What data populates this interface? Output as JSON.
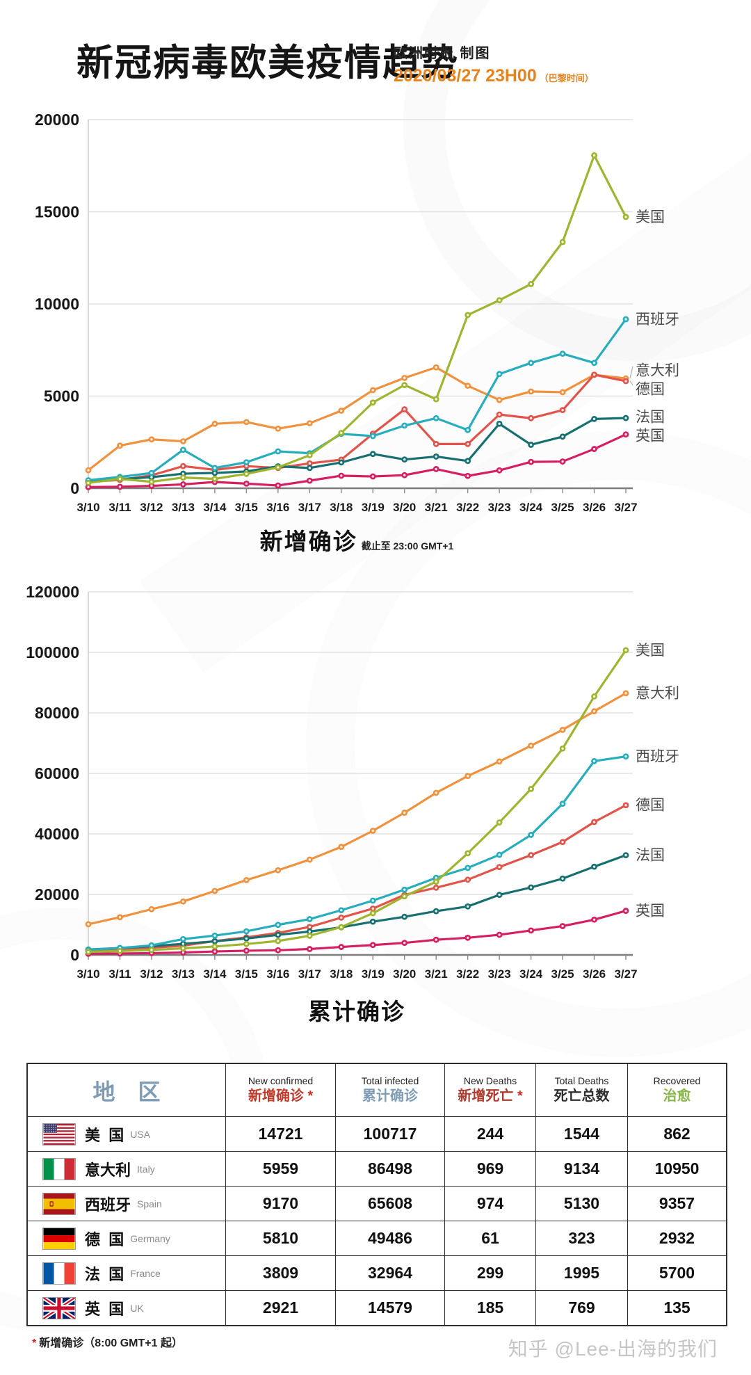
{
  "header": {
    "title": "新冠病毒欧美疫情趋势",
    "credit": "欧洲时报 制图",
    "datetime": "2020/03/27 23H00",
    "timezone_note": "（巴黎时间）",
    "accent_color": "#e8831c"
  },
  "chart_data": [
    {
      "type": "line",
      "title": "新增确诊",
      "title_suffix": "截止至 23:00 GMT+1",
      "x": [
        "3/10",
        "3/11",
        "3/12",
        "3/13",
        "3/14",
        "3/15",
        "3/16",
        "3/17",
        "3/18",
        "3/19",
        "3/20",
        "3/21",
        "3/22",
        "3/23",
        "3/24",
        "3/25",
        "3/26",
        "3/27"
      ],
      "ylim": [
        0,
        20000
      ],
      "yticks": [
        0,
        5000,
        10000,
        15000,
        20000
      ],
      "grid": true,
      "legend_position": "right",
      "series": [
        {
          "name": "意大利",
          "color": "#f0923d",
          "values": [
            977,
            2313,
            2651,
            2547,
            3497,
            3590,
            3233,
            3526,
            4207,
            5322,
            5986,
            6557,
            5560,
            4789,
            5249,
            5210,
            6153,
            5959
          ]
        },
        {
          "name": "德国",
          "color": "#e25449",
          "values": [
            350,
            450,
            700,
            1200,
            1000,
            1200,
            1100,
            1350,
            1550,
            2960,
            4280,
            2400,
            2400,
            4000,
            3800,
            4240,
            6160,
            5810
          ]
        },
        {
          "name": "法国",
          "color": "#17706f",
          "values": [
            370,
            500,
            600,
            790,
            830,
            910,
            1190,
            1100,
            1400,
            1860,
            1560,
            1720,
            1480,
            3500,
            2360,
            2800,
            3760,
            3809
          ]
        },
        {
          "name": "英国",
          "color": "#d61e62",
          "values": [
            60,
            80,
            130,
            210,
            340,
            250,
            150,
            410,
            680,
            640,
            710,
            1040,
            670,
            970,
            1430,
            1450,
            2130,
            2921
          ]
        },
        {
          "name": "西班牙",
          "color": "#27adbc",
          "values": [
            435,
            615,
            825,
            2086,
            1100,
            1410,
            2000,
            1900,
            2950,
            2830,
            3400,
            3800,
            3160,
            6200,
            6800,
            7300,
            6800,
            9170
          ]
        },
        {
          "name": "美国",
          "color": "#a0b52f",
          "values": [
            290,
            510,
            350,
            580,
            510,
            780,
            1130,
            1790,
            3000,
            4650,
            5600,
            4830,
            9400,
            10200,
            11080,
            13360,
            18060,
            14721
          ]
        }
      ]
    },
    {
      "type": "line",
      "title": "累计确诊",
      "title_suffix": "",
      "x": [
        "3/10",
        "3/11",
        "3/12",
        "3/13",
        "3/14",
        "3/15",
        "3/16",
        "3/17",
        "3/18",
        "3/19",
        "3/20",
        "3/21",
        "3/22",
        "3/23",
        "3/24",
        "3/25",
        "3/26",
        "3/27"
      ],
      "ylim": [
        0,
        120000
      ],
      "yticks": [
        0,
        20000,
        40000,
        60000,
        80000,
        100000,
        120000
      ],
      "grid": true,
      "legend_position": "right",
      "series": [
        {
          "name": "意大利",
          "color": "#f0923d",
          "values": [
            10149,
            12462,
            15113,
            17660,
            21157,
            24747,
            27980,
            31506,
            35713,
            41035,
            47021,
            53578,
            59138,
            63927,
            69176,
            74386,
            80539,
            86498
          ]
        },
        {
          "name": "德国",
          "color": "#e25449",
          "values": [
            1460,
            1900,
            2370,
            3060,
            4590,
            5800,
            7270,
            9260,
            12330,
            15320,
            19850,
            22210,
            24870,
            29060,
            32990,
            37320,
            43940,
            49486
          ]
        },
        {
          "name": "法国",
          "color": "#17706f",
          "values": [
            1780,
            2280,
            2880,
            3660,
            4500,
            5420,
            6630,
            7730,
            9130,
            11000,
            12610,
            14460,
            16020,
            19860,
            22300,
            25230,
            29160,
            32964
          ]
        },
        {
          "name": "英国",
          "color": "#d61e62",
          "values": [
            373,
            456,
            590,
            800,
            1140,
            1390,
            1540,
            1950,
            2630,
            3270,
            3980,
            5020,
            5680,
            6650,
            8080,
            9530,
            11660,
            14579
          ]
        },
        {
          "name": "西班牙",
          "color": "#27adbc",
          "values": [
            1700,
            2280,
            3150,
            5230,
            6390,
            7800,
            9940,
            11830,
            14770,
            17960,
            21570,
            25500,
            28770,
            33090,
            39670,
            49980,
            64060,
            65608
          ]
        },
        {
          "name": "美国",
          "color": "#a0b52f",
          "values": [
            994,
            1300,
            1630,
            2180,
            2770,
            3610,
            4600,
            6340,
            9200,
            13780,
            19370,
            24190,
            33590,
            43780,
            54860,
            68210,
            85430,
            100717
          ]
        }
      ]
    }
  ],
  "table": {
    "region_header": "地 区",
    "columns": [
      {
        "en": "New confirmed",
        "zh": "新增确诊",
        "star": true,
        "color": "#c0392b"
      },
      {
        "en": "Total infected",
        "zh": "累计确诊",
        "star": false,
        "color": "#7f9cb5"
      },
      {
        "en": "New Deaths",
        "zh": "新增死亡",
        "star": true,
        "color": "#b03a2e"
      },
      {
        "en": "Total Deaths",
        "zh": "死亡总数",
        "star": false,
        "color": "#2f2f2f"
      },
      {
        "en": "Recovered",
        "zh": "治愈",
        "star": false,
        "color": "#8ab74b"
      }
    ],
    "region_header_color": "#7f9cb5",
    "rows": [
      {
        "flag": "us",
        "zh": "美  国",
        "en": "USA",
        "values": [
          "14721",
          "100717",
          "244",
          "1544",
          "862"
        ]
      },
      {
        "flag": "it",
        "zh": "意大利",
        "en": "Italy",
        "values": [
          "5959",
          "86498",
          "969",
          "9134",
          "10950"
        ]
      },
      {
        "flag": "es",
        "zh": "西班牙",
        "en": "Spain",
        "values": [
          "9170",
          "65608",
          "974",
          "5130",
          "9357"
        ]
      },
      {
        "flag": "de",
        "zh": "德  国",
        "en": "Germany",
        "values": [
          "5810",
          "49486",
          "61",
          "323",
          "2932"
        ]
      },
      {
        "flag": "fr",
        "zh": "法  国",
        "en": "France",
        "values": [
          "3809",
          "32964",
          "299",
          "1995",
          "5700"
        ]
      },
      {
        "flag": "gb",
        "zh": "英  国",
        "en": "UK",
        "values": [
          "2921",
          "14579",
          "185",
          "769",
          "135"
        ]
      }
    ]
  },
  "footer": {
    "star": "*",
    "note": "新增确诊（8:00 GMT+1 起）"
  },
  "watermark": "知乎 @Lee-出海的我们"
}
